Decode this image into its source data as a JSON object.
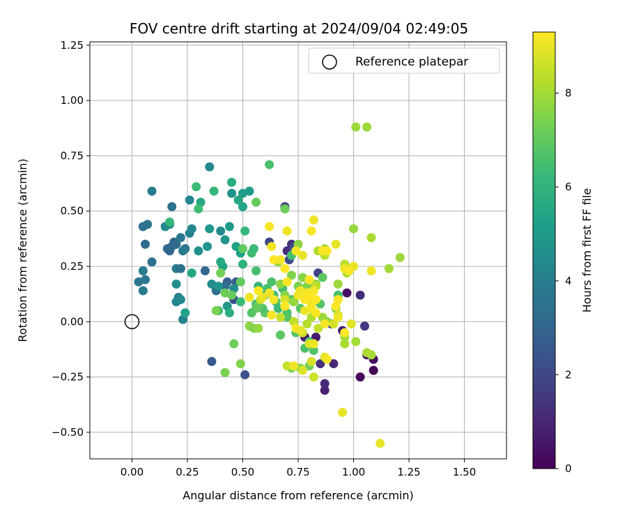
{
  "chart_data": {
    "type": "scatter",
    "title": "FOV centre drift starting at 2024/09/04 02:49:05",
    "xlabel": "Angular distance from reference (arcmin)",
    "ylabel": "Rotation from reference (arcmin)",
    "xlim": [
      -0.19,
      1.69
    ],
    "ylim": [
      -0.62,
      1.265
    ],
    "xticks": [
      "0.00",
      "0.25",
      "0.50",
      "0.75",
      "1.00",
      "1.25",
      "1.50"
    ],
    "yticks": [
      "−0.50",
      "−0.25",
      "0.00",
      "0.25",
      "0.50",
      "0.75",
      "1.00",
      "1.25"
    ],
    "xtick_values": [
      0,
      0.25,
      0.5,
      0.75,
      1.0,
      1.25,
      1.5
    ],
    "ytick_values": [
      -0.5,
      -0.25,
      0,
      0.25,
      0.5,
      0.75,
      1.0,
      1.25
    ],
    "grid": true,
    "legend": {
      "placement": "top-right",
      "label": "Reference platepar"
    },
    "reference": {
      "x": 0.0,
      "y": 0.0
    },
    "colorbar": {
      "label": "Hours from first FF file",
      "range": [
        0,
        9.3
      ],
      "ticks": [
        "0",
        "2",
        "4",
        "6",
        "8"
      ],
      "tick_values": [
        0,
        2,
        4,
        6,
        8
      ],
      "colormap": "viridis",
      "stops": [
        "#440154",
        "#482878",
        "#3e4a89",
        "#31688e",
        "#26828e",
        "#1f9e89",
        "#35b779",
        "#6ece58",
        "#b5de2b",
        "#fde725"
      ]
    },
    "points": [
      {
        "x": 1.03,
        "y": -0.25,
        "c": 0.2
      },
      {
        "x": 1.09,
        "y": -0.22,
        "c": 0.1
      },
      {
        "x": 1.09,
        "y": -0.17,
        "c": 0.3
      },
      {
        "x": 1.06,
        "y": -0.15,
        "c": 0.5
      },
      {
        "x": 0.97,
        "y": 0.13,
        "c": 0.4
      },
      {
        "x": 1.03,
        "y": 0.12,
        "c": 1.2
      },
      {
        "x": 1.05,
        "y": -0.02,
        "c": 1.5
      },
      {
        "x": 0.87,
        "y": -0.31,
        "c": 0.9
      },
      {
        "x": 0.87,
        "y": -0.28,
        "c": 1.1
      },
      {
        "x": 0.85,
        "y": -0.19,
        "c": 1.3
      },
      {
        "x": 0.91,
        "y": -0.19,
        "c": 1.0
      },
      {
        "x": 0.95,
        "y": -0.04,
        "c": 0.8
      },
      {
        "x": 0.9,
        "y": -0.01,
        "c": 1.6
      },
      {
        "x": 0.83,
        "y": -0.07,
        "c": 0.7
      },
      {
        "x": 0.78,
        "y": -0.07,
        "c": 0.6
      },
      {
        "x": 0.84,
        "y": 0.22,
        "c": 1.8
      },
      {
        "x": 0.72,
        "y": 0.35,
        "c": 1.4
      },
      {
        "x": 0.7,
        "y": 0.32,
        "c": 1.2
      },
      {
        "x": 0.62,
        "y": 0.36,
        "c": 1.9
      },
      {
        "x": 0.69,
        "y": 0.52,
        "c": 1.7
      },
      {
        "x": 0.73,
        "y": 0.33,
        "c": 2.4
      },
      {
        "x": 0.71,
        "y": 0.28,
        "c": 2.1
      },
      {
        "x": 0.36,
        "y": -0.18,
        "c": 2.6
      },
      {
        "x": 0.51,
        "y": -0.24,
        "c": 2.3
      },
      {
        "x": 0.47,
        "y": 0.18,
        "c": 2.7
      },
      {
        "x": 0.43,
        "y": 0.18,
        "c": 2.9
      },
      {
        "x": 0.46,
        "y": 0.1,
        "c": 2.2
      },
      {
        "x": 0.33,
        "y": 0.23,
        "c": 3.1
      },
      {
        "x": 0.42,
        "y": 0.16,
        "c": 3.3
      },
      {
        "x": 0.38,
        "y": 0.14,
        "c": 3.4
      },
      {
        "x": 0.05,
        "y": 0.43,
        "c": 3.5
      },
      {
        "x": 0.07,
        "y": 0.44,
        "c": 3.6
      },
      {
        "x": 0.06,
        "y": 0.35,
        "c": 3.3
      },
      {
        "x": 0.09,
        "y": 0.27,
        "c": 3.4
      },
      {
        "x": 0.03,
        "y": 0.18,
        "c": 3.6
      },
      {
        "x": 0.06,
        "y": 0.19,
        "c": 3.7
      },
      {
        "x": 0.05,
        "y": 0.14,
        "c": 3.8
      },
      {
        "x": 0.05,
        "y": 0.23,
        "c": 3.9
      },
      {
        "x": 0.09,
        "y": 0.59,
        "c": 3.8
      },
      {
        "x": 0.18,
        "y": 0.52,
        "c": 3.5
      },
      {
        "x": 0.16,
        "y": 0.33,
        "c": 3.2
      },
      {
        "x": 0.18,
        "y": 0.34,
        "c": 3.3
      },
      {
        "x": 0.2,
        "y": 0.35,
        "c": 3.4
      },
      {
        "x": 0.19,
        "y": 0.36,
        "c": 3.1
      },
      {
        "x": 0.17,
        "y": 0.32,
        "c": 3.0
      },
      {
        "x": 0.22,
        "y": 0.38,
        "c": 3.7
      },
      {
        "x": 0.24,
        "y": 0.33,
        "c": 3.6
      },
      {
        "x": 0.23,
        "y": 0.32,
        "c": 3.9
      },
      {
        "x": 0.2,
        "y": 0.24,
        "c": 3.8
      },
      {
        "x": 0.22,
        "y": 0.24,
        "c": 3.5
      },
      {
        "x": 0.23,
        "y": 0.01,
        "c": 4.1
      },
      {
        "x": 0.2,
        "y": 0.09,
        "c": 4.2
      },
      {
        "x": 0.21,
        "y": 0.11,
        "c": 4.0
      },
      {
        "x": 0.22,
        "y": 0.1,
        "c": 4.4
      },
      {
        "x": 0.2,
        "y": 0.17,
        "c": 4.6
      },
      {
        "x": 0.15,
        "y": 0.43,
        "c": 4.3
      },
      {
        "x": 0.17,
        "y": 0.44,
        "c": 4.5
      },
      {
        "x": 0.26,
        "y": 0.55,
        "c": 4.2
      },
      {
        "x": 0.26,
        "y": 0.4,
        "c": 4.1
      },
      {
        "x": 0.27,
        "y": 0.42,
        "c": 4.3
      },
      {
        "x": 0.35,
        "y": 0.7,
        "c": 4.4
      },
      {
        "x": 0.3,
        "y": 0.32,
        "c": 4.7
      },
      {
        "x": 0.34,
        "y": 0.34,
        "c": 4.8
      },
      {
        "x": 0.35,
        "y": 0.42,
        "c": 4.9
      },
      {
        "x": 0.36,
        "y": 0.17,
        "c": 4.6
      },
      {
        "x": 0.39,
        "y": 0.16,
        "c": 4.8
      },
      {
        "x": 0.43,
        "y": 0.07,
        "c": 4.9
      },
      {
        "x": 0.46,
        "y": 0.15,
        "c": 4.5
      },
      {
        "x": 0.4,
        "y": 0.41,
        "c": 4.5
      },
      {
        "x": 0.42,
        "y": 0.37,
        "c": 4.9
      },
      {
        "x": 0.44,
        "y": 0.43,
        "c": 5.0
      },
      {
        "x": 0.45,
        "y": 0.58,
        "c": 4.7
      },
      {
        "x": 0.49,
        "y": 0.31,
        "c": 5.2
      },
      {
        "x": 0.24,
        "y": 0.04,
        "c": 5.3
      },
      {
        "x": 0.27,
        "y": 0.22,
        "c": 5.5
      },
      {
        "x": 0.31,
        "y": 0.54,
        "c": 5.6
      },
      {
        "x": 0.41,
        "y": 0.25,
        "c": 5.4
      },
      {
        "x": 0.4,
        "y": 0.27,
        "c": 5.6
      },
      {
        "x": 0.44,
        "y": 0.04,
        "c": 5.8
      },
      {
        "x": 0.47,
        "y": 0.34,
        "c": 5.3
      },
      {
        "x": 0.48,
        "y": 0.55,
        "c": 5.5
      },
      {
        "x": 0.5,
        "y": 0.52,
        "c": 5.4
      },
      {
        "x": 0.5,
        "y": 0.58,
        "c": 5.2
      },
      {
        "x": 0.53,
        "y": 0.59,
        "c": 5.1
      },
      {
        "x": 0.45,
        "y": 0.63,
        "c": 5.7
      },
      {
        "x": 0.17,
        "y": 0.45,
        "c": 6.2
      },
      {
        "x": 0.29,
        "y": 0.61,
        "c": 6.3
      },
      {
        "x": 0.3,
        "y": 0.51,
        "c": 6.4
      },
      {
        "x": 0.37,
        "y": 0.59,
        "c": 6.2
      },
      {
        "x": 0.39,
        "y": 0.05,
        "c": 6.1
      },
      {
        "x": 0.51,
        "y": 0.41,
        "c": 6.2
      },
      {
        "x": 0.54,
        "y": 0.31,
        "c": 6.4
      },
      {
        "x": 0.55,
        "y": 0.33,
        "c": 6.3
      },
      {
        "x": 0.5,
        "y": 0.26,
        "c": 6.0
      },
      {
        "x": 0.56,
        "y": 0.23,
        "c": 6.5
      },
      {
        "x": 0.57,
        "y": 0.16,
        "c": 6.1
      },
      {
        "x": 0.56,
        "y": 0.08,
        "c": 6.6
      },
      {
        "x": 0.53,
        "y": 0.11,
        "c": 6.2
      },
      {
        "x": 0.49,
        "y": 0.09,
        "c": 6.3
      },
      {
        "x": 0.6,
        "y": 0.12,
        "c": 6.4
      },
      {
        "x": 0.61,
        "y": 0.15,
        "c": 6.5
      },
      {
        "x": 0.62,
        "y": 0.71,
        "c": 6.6
      },
      {
        "x": 0.63,
        "y": 0.18,
        "c": 6.6
      },
      {
        "x": 0.64,
        "y": 0.12,
        "c": 6.4
      },
      {
        "x": 0.65,
        "y": 0.09,
        "c": 6.7
      },
      {
        "x": 0.66,
        "y": 0.06,
        "c": 6.3
      },
      {
        "x": 0.68,
        "y": 0.15,
        "c": 6.5
      },
      {
        "x": 0.7,
        "y": 0.04,
        "c": 6.6
      },
      {
        "x": 0.72,
        "y": 0.1,
        "c": 6.8
      },
      {
        "x": 0.72,
        "y": 0.3,
        "c": 6.5
      },
      {
        "x": 0.78,
        "y": -0.12,
        "c": 6.6
      },
      {
        "x": 0.8,
        "y": -0.09,
        "c": 6.4
      },
      {
        "x": 0.82,
        "y": -0.13,
        "c": 6.7
      },
      {
        "x": 0.74,
        "y": -0.05,
        "c": 6.8
      },
      {
        "x": 0.67,
        "y": -0.06,
        "c": 6.9
      },
      {
        "x": 0.7,
        "y": 0.02,
        "c": 6.8
      },
      {
        "x": 0.76,
        "y": 0.06,
        "c": 6.9
      },
      {
        "x": 0.8,
        "y": 0.12,
        "c": 6.7
      },
      {
        "x": 0.85,
        "y": 0.08,
        "c": 6.8
      },
      {
        "x": 0.86,
        "y": 0.2,
        "c": 6.9
      },
      {
        "x": 0.93,
        "y": 0.12,
        "c": 6.5
      },
      {
        "x": 0.6,
        "y": 0.04,
        "c": 6.9
      },
      {
        "x": 0.56,
        "y": 0.06,
        "c": 7.0
      },
      {
        "x": 0.54,
        "y": 0.04,
        "c": 6.8
      },
      {
        "x": 0.59,
        "y": 0.06,
        "c": 6.7
      },
      {
        "x": 0.57,
        "y": 0.07,
        "c": 7.1
      },
      {
        "x": 0.49,
        "y": 0.18,
        "c": 7.0
      },
      {
        "x": 0.45,
        "y": 0.12,
        "c": 7.1
      },
      {
        "x": 0.42,
        "y": 0.13,
        "c": 7.2
      },
      {
        "x": 0.4,
        "y": 0.22,
        "c": 7.3
      },
      {
        "x": 0.38,
        "y": 0.05,
        "c": 7.4
      },
      {
        "x": 0.42,
        "y": -0.23,
        "c": 7.4
      },
      {
        "x": 0.46,
        "y": -0.1,
        "c": 7.2
      },
      {
        "x": 0.49,
        "y": -0.19,
        "c": 7.5
      },
      {
        "x": 0.5,
        "y": 0.33,
        "c": 7.0
      },
      {
        "x": 0.56,
        "y": 0.54,
        "c": 7.1
      },
      {
        "x": 0.69,
        "y": 0.51,
        "c": 7.2
      },
      {
        "x": 0.72,
        "y": 0.21,
        "c": 7.5
      },
      {
        "x": 0.75,
        "y": 0.16,
        "c": 7.4
      },
      {
        "x": 0.77,
        "y": 0.2,
        "c": 7.6
      },
      {
        "x": 0.79,
        "y": 0.16,
        "c": 7.5
      },
      {
        "x": 0.53,
        "y": -0.02,
        "c": 7.7
      },
      {
        "x": 0.55,
        "y": -0.03,
        "c": 7.5
      },
      {
        "x": 0.57,
        "y": -0.03,
        "c": 7.8
      },
      {
        "x": 0.67,
        "y": 0.17,
        "c": 7.7
      },
      {
        "x": 0.69,
        "y": 0.12,
        "c": 7.6
      },
      {
        "x": 0.73,
        "y": 0.09,
        "c": 7.8
      },
      {
        "x": 0.75,
        "y": 0.35,
        "c": 7.7
      },
      {
        "x": 0.66,
        "y": 0.27,
        "c": 7.8
      },
      {
        "x": 0.72,
        "y": -0.21,
        "c": 7.4
      },
      {
        "x": 0.76,
        "y": -0.21,
        "c": 7.6
      },
      {
        "x": 0.8,
        "y": -0.2,
        "c": 7.3
      },
      {
        "x": 0.83,
        "y": 0.17,
        "c": 7.7
      },
      {
        "x": 0.86,
        "y": 0.02,
        "c": 7.9
      },
      {
        "x": 0.88,
        "y": 0.0,
        "c": 7.8
      },
      {
        "x": 0.92,
        "y": 0.06,
        "c": 7.6
      },
      {
        "x": 0.93,
        "y": 0.17,
        "c": 7.9
      },
      {
        "x": 1.0,
        "y": 0.42,
        "c": 7.8
      },
      {
        "x": 1.01,
        "y": 0.88,
        "c": 7.9
      },
      {
        "x": 1.06,
        "y": 0.88,
        "c": 7.9
      },
      {
        "x": 1.16,
        "y": 0.24,
        "c": 8.0
      },
      {
        "x": 1.21,
        "y": 0.29,
        "c": 7.9
      },
      {
        "x": 1.08,
        "y": -0.15,
        "c": 8.0
      },
      {
        "x": 1.06,
        "y": -0.14,
        "c": 8.1
      },
      {
        "x": 1.01,
        "y": -0.09,
        "c": 8.0
      },
      {
        "x": 0.96,
        "y": -0.1,
        "c": 8.1
      },
      {
        "x": 0.96,
        "y": -0.07,
        "c": 8.0
      },
      {
        "x": 0.97,
        "y": 0.22,
        "c": 8.2
      },
      {
        "x": 0.96,
        "y": 0.26,
        "c": 8.3
      },
      {
        "x": 1.08,
        "y": 0.38,
        "c": 8.1
      },
      {
        "x": 0.87,
        "y": 0.33,
        "c": 8.0
      },
      {
        "x": 0.87,
        "y": 0.3,
        "c": 8.3
      },
      {
        "x": 0.84,
        "y": 0.32,
        "c": 8.2
      },
      {
        "x": 0.83,
        "y": 0.16,
        "c": 8.4
      },
      {
        "x": 0.81,
        "y": 0.02,
        "c": 8.2
      },
      {
        "x": 0.84,
        "y": -0.03,
        "c": 8.5
      },
      {
        "x": 0.79,
        "y": -0.01,
        "c": 8.3
      },
      {
        "x": 0.77,
        "y": -0.05,
        "c": 8.6
      },
      {
        "x": 0.73,
        "y": 0.0,
        "c": 8.4
      },
      {
        "x": 0.69,
        "y": 0.1,
        "c": 8.7
      },
      {
        "x": 0.67,
        "y": 0.02,
        "c": 8.5
      },
      {
        "x": 0.58,
        "y": 0.1,
        "c": 8.6
      },
      {
        "x": 0.7,
        "y": -0.2,
        "c": 8.5
      },
      {
        "x": 0.81,
        "y": -0.18,
        "c": 8.7
      },
      {
        "x": 0.77,
        "y": -0.22,
        "c": 8.8
      },
      {
        "x": 0.82,
        "y": -0.25,
        "c": 8.6
      },
      {
        "x": 0.8,
        "y": -0.1,
        "c": 8.8
      },
      {
        "x": 0.87,
        "y": -0.16,
        "c": 8.9
      },
      {
        "x": 0.91,
        "y": -0.01,
        "c": 8.7
      },
      {
        "x": 0.93,
        "y": 0.03,
        "c": 8.8
      },
      {
        "x": 0.99,
        "y": -0.01,
        "c": 8.9
      },
      {
        "x": 0.95,
        "y": -0.41,
        "c": 9.0
      },
      {
        "x": 1.12,
        "y": -0.55,
        "c": 9.0
      },
      {
        "x": 0.96,
        "y": 0.24,
        "c": 9.1
      },
      {
        "x": 1.0,
        "y": 0.25,
        "c": 9.0
      },
      {
        "x": 0.98,
        "y": 0.23,
        "c": 9.2
      },
      {
        "x": 1.08,
        "y": 0.23,
        "c": 9.1
      },
      {
        "x": 0.92,
        "y": 0.35,
        "c": 9.0
      },
      {
        "x": 0.86,
        "y": 0.32,
        "c": 9.2
      },
      {
        "x": 0.82,
        "y": 0.46,
        "c": 9.1
      },
      {
        "x": 0.81,
        "y": 0.41,
        "c": 9.2
      },
      {
        "x": 0.77,
        "y": 0.3,
        "c": 9.0
      },
      {
        "x": 0.7,
        "y": 0.41,
        "c": 9.1
      },
      {
        "x": 0.62,
        "y": 0.43,
        "c": 9.2
      },
      {
        "x": 0.63,
        "y": 0.34,
        "c": 9.1
      },
      {
        "x": 0.64,
        "y": 0.28,
        "c": 9.3
      },
      {
        "x": 0.67,
        "y": 0.28,
        "c": 9.2
      },
      {
        "x": 0.69,
        "y": 0.24,
        "c": 9.3
      },
      {
        "x": 0.7,
        "y": 0.18,
        "c": 9.2
      },
      {
        "x": 0.62,
        "y": 0.13,
        "c": 9.1
      },
      {
        "x": 0.64,
        "y": 0.1,
        "c": 9.2
      },
      {
        "x": 0.59,
        "y": 0.11,
        "c": 9.0
      },
      {
        "x": 0.57,
        "y": 0.14,
        "c": 9.3
      },
      {
        "x": 0.53,
        "y": 0.11,
        "c": 9.1
      },
      {
        "x": 0.63,
        "y": 0.03,
        "c": 9.2
      },
      {
        "x": 0.69,
        "y": 0.07,
        "c": 9.3
      },
      {
        "x": 0.75,
        "y": 0.12,
        "c": 9.2
      },
      {
        "x": 0.76,
        "y": 0.14,
        "c": 9.1
      },
      {
        "x": 0.78,
        "y": 0.1,
        "c": 9.3
      },
      {
        "x": 0.79,
        "y": 0.13,
        "c": 9.2
      },
      {
        "x": 0.8,
        "y": 0.11,
        "c": 9.3
      },
      {
        "x": 0.81,
        "y": 0.08,
        "c": 9.1
      },
      {
        "x": 0.82,
        "y": 0.14,
        "c": 9.2
      },
      {
        "x": 0.8,
        "y": 0.19,
        "c": 9.3
      },
      {
        "x": 0.81,
        "y": 0.06,
        "c": 9.2
      },
      {
        "x": 0.83,
        "y": 0.1,
        "c": 9.3
      },
      {
        "x": 0.78,
        "y": 0.05,
        "c": 9.1
      },
      {
        "x": 0.74,
        "y": -0.03,
        "c": 9.2
      },
      {
        "x": 0.76,
        "y": -0.04,
        "c": 9.0
      },
      {
        "x": 0.83,
        "y": 0.04,
        "c": 9.3
      },
      {
        "x": 0.82,
        "y": -0.1,
        "c": 9.1
      },
      {
        "x": 0.87,
        "y": -0.01,
        "c": 9.2
      },
      {
        "x": 0.92,
        "y": 0.07,
        "c": 9.3
      },
      {
        "x": 0.93,
        "y": 0.1,
        "c": 9.2
      },
      {
        "x": 0.93,
        "y": 0.02,
        "c": 9.1
      },
      {
        "x": 0.96,
        "y": -0.05,
        "c": 9.3
      },
      {
        "x": 0.88,
        "y": -0.17,
        "c": 9.2
      },
      {
        "x": 0.73,
        "y": -0.2,
        "c": 9.1
      },
      {
        "x": 0.74,
        "y": 0.32,
        "c": 9.2
      },
      {
        "x": 0.88,
        "y": 0.32,
        "c": 9.3
      }
    ]
  }
}
